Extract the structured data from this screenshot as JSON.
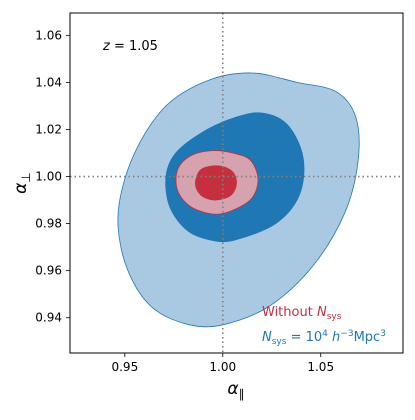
{
  "chart_data": {
    "type": "contour",
    "title": "",
    "xlabel": "α∥",
    "ylabel": "α⊥",
    "xlim": [
      0.922,
      1.092
    ],
    "ylim": [
      0.925,
      1.0695
    ],
    "xticks": [
      0.95,
      1.0,
      1.05
    ],
    "xtick_labels": [
      "0.95",
      "1.00",
      "1.05"
    ],
    "yticks": [
      0.94,
      0.96,
      0.98,
      1.0,
      1.02,
      1.04,
      1.06
    ],
    "ytick_labels": [
      "0.94",
      "0.96",
      "0.98",
      "1.00",
      "1.02",
      "1.04",
      "1.06"
    ],
    "annotation": "z = 1.05",
    "reference_lines": {
      "x": 1.0,
      "y": 1.0,
      "style": "dotted",
      "color": "#808080"
    },
    "legend_placement": "bottom-right",
    "series": [
      {
        "name": "N_sys = 10^4 h^-3 Mpc^3",
        "label_parts": {
          "main": "N",
          "sub": "sys",
          "eq": " = 10",
          "exp": "4",
          "h": " h",
          "hexp": "−3",
          "unit": "Mpc",
          "unitexp": "3"
        },
        "color": "#1f77b4",
        "fills": [
          "#a9c9e3",
          "#1f77b4"
        ],
        "center": [
          1.002,
          0.999
        ],
        "contours": [
          {
            "level": "2σ",
            "points": [
              [
                1.038,
                1.04
              ],
              [
                1.058,
                1.036
              ],
              [
                1.068,
                1.025
              ],
              [
                1.069,
                1.006
              ],
              [
                1.062,
                0.984
              ],
              [
                1.046,
                0.962
              ],
              [
                1.024,
                0.945
              ],
              [
                1.0,
                0.937
              ],
              [
                0.983,
                0.937
              ],
              [
                0.966,
                0.943
              ],
              [
                0.955,
                0.954
              ],
              [
                0.948,
                0.97
              ],
              [
                0.947,
                0.988
              ],
              [
                0.955,
                1.01
              ],
              [
                0.971,
                1.03
              ],
              [
                0.993,
                1.041
              ],
              [
                1.015,
                1.044
              ]
            ]
          },
          {
            "level": "1σ",
            "points": [
              [
                1.02,
                1.027
              ],
              [
                1.033,
                1.022
              ],
              [
                1.041,
                1.008
              ],
              [
                1.039,
                0.992
              ],
              [
                1.027,
                0.98
              ],
              [
                1.006,
                0.973
              ],
              [
                0.994,
                0.973
              ],
              [
                0.982,
                0.977
              ],
              [
                0.973,
                0.987
              ],
              [
                0.971,
                1.0
              ],
              [
                0.976,
                1.01
              ],
              [
                0.99,
                1.019
              ],
              [
                1.006,
                1.025
              ]
            ]
          }
        ]
      },
      {
        "name": "Without N_sys",
        "label_parts": {
          "main": "Without ",
          "var": "N",
          "sub": "sys"
        },
        "color": "#c62f3e",
        "fills": [
          "#d6a2ae",
          "#c62f3e"
        ],
        "center": [
          0.996,
          0.998
        ],
        "contours": [
          {
            "level": "2σ",
            "points": [
              [
                1.005,
                1.01
              ],
              [
                1.014,
                1.007
              ],
              [
                1.018,
                0.999
              ],
              [
                1.015,
                0.991
              ],
              [
                1.006,
                0.986
              ],
              [
                0.996,
                0.984
              ],
              [
                0.984,
                0.987
              ],
              [
                0.977,
                0.994
              ],
              [
                0.977,
                1.003
              ],
              [
                0.984,
                1.009
              ],
              [
                0.995,
                1.011
              ]
            ]
          },
          {
            "level": "1σ",
            "points": [
              [
                0.998,
                1.0045
              ],
              [
                1.005,
                1.002
              ],
              [
                1.007,
                0.997
              ],
              [
                1.004,
                0.992
              ],
              [
                0.996,
                0.99
              ],
              [
                0.989,
                0.992
              ],
              [
                0.986,
                0.997
              ],
              [
                0.989,
                1.003
              ]
            ]
          }
        ]
      }
    ]
  }
}
